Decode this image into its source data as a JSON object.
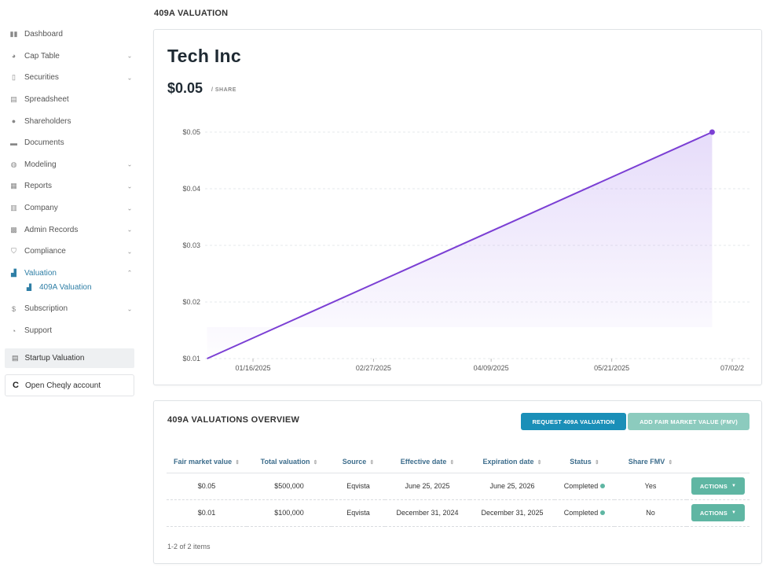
{
  "sidebar": {
    "items": [
      {
        "label": "Dashboard",
        "icon": "dashboard-icon",
        "glyph": "▮▮",
        "expandable": false
      },
      {
        "label": "Cap Table",
        "icon": "pie-chart-icon",
        "glyph": "◕",
        "expandable": true
      },
      {
        "label": "Securities",
        "icon": "clipboard-icon",
        "glyph": "▯",
        "expandable": true
      },
      {
        "label": "Spreadsheet",
        "icon": "spreadsheet-icon",
        "glyph": "▤",
        "expandable": false
      },
      {
        "label": "Shareholders",
        "icon": "person-icon",
        "glyph": "●",
        "expandable": false
      },
      {
        "label": "Documents",
        "icon": "folder-icon",
        "glyph": "▬",
        "expandable": false
      },
      {
        "label": "Modeling",
        "icon": "lightbulb-icon",
        "glyph": "◍",
        "expandable": true
      },
      {
        "label": "Reports",
        "icon": "reports-icon",
        "glyph": "▦",
        "expandable": true
      },
      {
        "label": "Company",
        "icon": "building-icon",
        "glyph": "▥",
        "expandable": true
      },
      {
        "label": "Admin Records",
        "icon": "admin-records-icon",
        "glyph": "▩",
        "expandable": true
      },
      {
        "label": "Compliance",
        "icon": "shield-icon",
        "glyph": "⛉",
        "expandable": true
      },
      {
        "label": "Valuation",
        "icon": "valuation-chart-icon",
        "glyph": "▟",
        "expandable": true,
        "active": true
      }
    ],
    "sub_item": {
      "label": "409A Valuation",
      "icon": "valuation-chart-icon",
      "glyph": "▟"
    },
    "items_after": [
      {
        "label": "Subscription",
        "icon": "dollar-circle-icon",
        "glyph": "$",
        "expandable": true
      },
      {
        "label": "Support",
        "icon": "support-icon",
        "glyph": "◔",
        "expandable": false
      }
    ],
    "startup_valuation": "Startup Valuation",
    "open_account": "Open Cheqly account",
    "open_account_glyph": "C"
  },
  "page_title": "409A VALUATION",
  "valuation": {
    "company": "Tech Inc",
    "price": "$0.05",
    "price_unit": "/ SHARE"
  },
  "chart_data": {
    "type": "area",
    "x": [
      "2024-12-31",
      "2025-06-25"
    ],
    "values": [
      0.01,
      0.05
    ],
    "x_ticks": [
      "01/16/2025",
      "02/27/2025",
      "04/09/2025",
      "05/21/2025",
      "07/02/2"
    ],
    "x_tick_dates": [
      "2025-01-16",
      "2025-02-27",
      "2025-04-09",
      "2025-05-21",
      "2025-07-02"
    ],
    "y_ticks": [
      "$0.01",
      "$0.02",
      "$0.03",
      "$0.04",
      "$0.05"
    ],
    "y_tick_values": [
      0.01,
      0.02,
      0.03,
      0.04,
      0.05
    ],
    "ylim": [
      0.01,
      0.05
    ],
    "grid": true,
    "line_color": "#7b3fd4",
    "fill_color": "#b89cf0"
  },
  "overview": {
    "title": "409A VALUATIONS OVERVIEW",
    "request_button": "REQUEST 409A VALUATION",
    "fmv_button": "ADD FAIR MARKET VALUE (FMV)",
    "columns": [
      "Fair market value",
      "Total valuation",
      "Source",
      "Effective date",
      "Expiration date",
      "Status",
      "Share FMV"
    ],
    "rows": [
      {
        "fmv": "$0.05",
        "total": "$500,000",
        "source": "Eqvista",
        "effective": "June 25, 2025",
        "expiration": "June 25, 2026",
        "status": "Completed",
        "share_fmv": "Yes",
        "action": "ACTIONS"
      },
      {
        "fmv": "$0.01",
        "total": "$100,000",
        "source": "Eqvista",
        "effective": "December 31, 2024",
        "expiration": "December 31, 2025",
        "status": "Completed",
        "share_fmv": "No",
        "action": "ACTIONS"
      }
    ],
    "items_count": "1-2 of 2 items"
  },
  "colors": {
    "accent": "#2f7fa6",
    "request_button": "#1a8fb8",
    "fmv_button": "#8ccbbe",
    "action_button": "#5fb6a3",
    "status_dot": "#5fb6a3"
  }
}
